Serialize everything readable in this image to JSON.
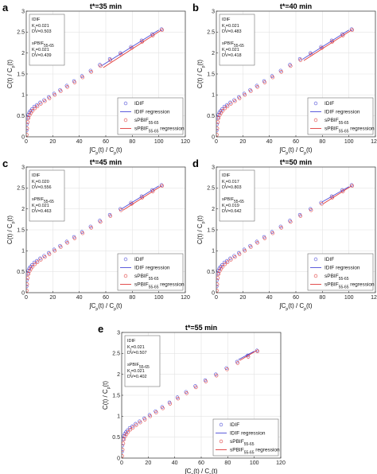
{
  "palette": {
    "idif": "#4b4bd8",
    "sp": "#e03c3c",
    "grid": "#e3e3e3",
    "axis": "#333333"
  },
  "chart_data": [
    {
      "panel": "a",
      "type": "scatter",
      "title": "t*=35 min",
      "xlabel": "∫Cp(t) / Cp(t)",
      "ylabel": "C(t) / Cp(t)",
      "xlim": [
        0,
        120
      ],
      "ylim": [
        0,
        3
      ],
      "xticks": [
        0,
        20,
        40,
        60,
        80,
        100,
        120
      ],
      "yticks": [
        0,
        0.5,
        1,
        1.5,
        2,
        2.5,
        3
      ],
      "grid": true,
      "legend_position": "bottom-right",
      "annotation": [
        "IDIF",
        "Ki=0.021",
        "DV=0.503",
        "sPBIF55-65",
        "Ki=0.021",
        "DV=0.439"
      ],
      "series": [
        {
          "name": "IDIF",
          "kind": "points",
          "x": [
            0.2,
            0.5,
            1,
            1.6,
            2.3,
            3.2,
            4.3,
            6,
            8,
            10.5,
            13.5,
            17,
            21,
            25.5,
            30.5,
            36,
            42,
            48.5,
            55.5,
            63,
            71,
            79,
            87,
            95,
            102
          ],
          "y": [
            0.15,
            0.3,
            0.45,
            0.53,
            0.58,
            0.62,
            0.66,
            0.72,
            0.76,
            0.82,
            0.88,
            0.95,
            1.03,
            1.12,
            1.22,
            1.33,
            1.45,
            1.58,
            1.72,
            1.86,
            2.0,
            2.15,
            2.3,
            2.45,
            2.57
          ]
        },
        {
          "name": "IDIF regression",
          "kind": "line",
          "x": [
            57,
            100
          ],
          "y": [
            1.7,
            2.55
          ]
        },
        {
          "name": "sPBIF55-65",
          "kind": "points",
          "x": [
            0.3,
            0.7,
            1.2,
            1.8,
            2.6,
            3.6,
            4.8,
            6.5,
            8.5,
            11,
            14,
            17.5,
            21.5,
            26,
            31,
            36.5,
            42.5,
            49,
            56,
            63.5,
            71.5,
            79.5,
            87.5,
            95.5,
            102.5
          ],
          "y": [
            0.05,
            0.2,
            0.35,
            0.45,
            0.52,
            0.57,
            0.62,
            0.68,
            0.73,
            0.79,
            0.85,
            0.92,
            1.0,
            1.09,
            1.19,
            1.3,
            1.42,
            1.55,
            1.69,
            1.83,
            1.97,
            2.12,
            2.27,
            2.42,
            2.55
          ]
        },
        {
          "name": "sPBIF55-65 regression",
          "kind": "line",
          "x": [
            58,
            102
          ],
          "y": [
            1.65,
            2.55
          ]
        }
      ]
    },
    {
      "panel": "b",
      "type": "scatter",
      "title": "t*=40 min",
      "xlabel": "∫Cp(t) / Cp(t)",
      "ylabel": "C(t) / Cp(t)",
      "xlim": [
        0,
        120
      ],
      "ylim": [
        0,
        3
      ],
      "xticks": [
        0,
        20,
        40,
        60,
        80,
        100,
        120
      ],
      "yticks": [
        0,
        0.5,
        1,
        1.5,
        2,
        2.5,
        3
      ],
      "grid": true,
      "legend_position": "bottom-right",
      "annotation": [
        "IDIF",
        "Ki=0.021",
        "DV=0.483",
        "sPBIF55-65",
        "Ki=0.021",
        "DV=0.418"
      ],
      "series": [
        {
          "name": "IDIF",
          "kind": "points",
          "x": [
            0.2,
            0.5,
            1,
            1.6,
            2.3,
            3.2,
            4.3,
            6,
            8,
            10.5,
            13.5,
            17,
            21,
            25.5,
            30.5,
            36,
            42,
            48.5,
            55.5,
            63,
            71,
            79,
            87,
            95,
            102
          ],
          "y": [
            0.15,
            0.3,
            0.45,
            0.53,
            0.58,
            0.62,
            0.66,
            0.72,
            0.76,
            0.82,
            0.88,
            0.95,
            1.03,
            1.12,
            1.22,
            1.33,
            1.45,
            1.58,
            1.72,
            1.86,
            2.0,
            2.15,
            2.3,
            2.45,
            2.57
          ]
        },
        {
          "name": "IDIF regression",
          "kind": "line",
          "x": [
            65,
            100
          ],
          "y": [
            1.85,
            2.55
          ]
        },
        {
          "name": "sPBIF55-65",
          "kind": "points",
          "x": [
            0.3,
            0.7,
            1.2,
            1.8,
            2.6,
            3.6,
            4.8,
            6.5,
            8.5,
            11,
            14,
            17.5,
            21.5,
            26,
            31,
            36.5,
            42.5,
            49,
            56,
            63.5,
            71.5,
            79.5,
            87.5,
            95.5,
            102.5
          ],
          "y": [
            0.05,
            0.2,
            0.35,
            0.45,
            0.52,
            0.57,
            0.62,
            0.68,
            0.73,
            0.79,
            0.85,
            0.92,
            1.0,
            1.09,
            1.19,
            1.3,
            1.42,
            1.55,
            1.69,
            1.83,
            1.97,
            2.12,
            2.27,
            2.42,
            2.55
          ]
        },
        {
          "name": "sPBIF55-65 regression",
          "kind": "line",
          "x": [
            66,
            102
          ],
          "y": [
            1.82,
            2.55
          ]
        }
      ]
    },
    {
      "panel": "c",
      "type": "scatter",
      "title": "t*=45 min",
      "xlabel": "∫Cp(t) / Cp(t)",
      "ylabel": "C(t) / Cp(t)",
      "xlim": [
        0,
        120
      ],
      "ylim": [
        0,
        3
      ],
      "xticks": [
        0,
        20,
        40,
        60,
        80,
        100,
        120
      ],
      "yticks": [
        0,
        0.5,
        1,
        1.5,
        2,
        2.5,
        3
      ],
      "grid": true,
      "legend_position": "bottom-right",
      "annotation": [
        "IDIF",
        "Ki=0.020",
        "DV=0.556",
        "sPBIF55-65",
        "Ki=0.021",
        "DV=0.463"
      ],
      "series": [
        {
          "name": "IDIF",
          "kind": "points",
          "x": [
            0.2,
            0.5,
            1,
            1.6,
            2.3,
            3.2,
            4.3,
            6,
            8,
            10.5,
            13.5,
            17,
            21,
            25.5,
            30.5,
            36,
            42,
            48.5,
            55.5,
            63,
            71,
            79,
            87,
            95,
            102
          ],
          "y": [
            0.15,
            0.3,
            0.45,
            0.53,
            0.58,
            0.62,
            0.66,
            0.72,
            0.76,
            0.82,
            0.88,
            0.95,
            1.03,
            1.12,
            1.22,
            1.33,
            1.45,
            1.58,
            1.72,
            1.86,
            2.0,
            2.15,
            2.3,
            2.45,
            2.57
          ]
        },
        {
          "name": "IDIF regression",
          "kind": "line",
          "x": [
            72,
            100
          ],
          "y": [
            2.0,
            2.55
          ]
        },
        {
          "name": "sPBIF55-65",
          "kind": "points",
          "x": [
            0.3,
            0.7,
            1.2,
            1.8,
            2.6,
            3.6,
            4.8,
            6.5,
            8.5,
            11,
            14,
            17.5,
            21.5,
            26,
            31,
            36.5,
            42.5,
            49,
            56,
            63.5,
            71.5,
            79.5,
            87.5,
            95.5,
            102.5
          ],
          "y": [
            0.05,
            0.2,
            0.35,
            0.45,
            0.52,
            0.57,
            0.62,
            0.68,
            0.73,
            0.79,
            0.85,
            0.92,
            1.0,
            1.09,
            1.19,
            1.3,
            1.42,
            1.55,
            1.69,
            1.83,
            1.97,
            2.12,
            2.27,
            2.42,
            2.55
          ]
        },
        {
          "name": "sPBIF55-65 regression",
          "kind": "line",
          "x": [
            73,
            102
          ],
          "y": [
            1.97,
            2.55
          ]
        }
      ]
    },
    {
      "panel": "d",
      "type": "scatter",
      "title": "t*=50 min",
      "xlabel": "∫Cp(t) / Cp(t)",
      "ylabel": "C(t) / Cp(t)",
      "xlim": [
        0,
        120
      ],
      "ylim": [
        0,
        3
      ],
      "xticks": [
        0,
        20,
        40,
        60,
        80,
        100,
        120
      ],
      "yticks": [
        0,
        0.5,
        1,
        1.5,
        2,
        2.5,
        3
      ],
      "grid": true,
      "legend_position": "bottom-right",
      "annotation": [
        "IDIF",
        "Ki=0.017",
        "DV=0.803",
        "sPBIF55-65",
        "Ki=0.019",
        "DV=0.642"
      ],
      "series": [
        {
          "name": "IDIF",
          "kind": "points",
          "x": [
            0.2,
            0.5,
            1,
            1.6,
            2.3,
            3.2,
            4.3,
            6,
            8,
            10.5,
            13.5,
            17,
            21,
            25.5,
            30.5,
            36,
            42,
            48.5,
            55.5,
            63,
            71,
            79,
            87,
            95,
            102
          ],
          "y": [
            0.15,
            0.3,
            0.45,
            0.53,
            0.58,
            0.62,
            0.66,
            0.72,
            0.76,
            0.82,
            0.88,
            0.95,
            1.03,
            1.12,
            1.22,
            1.33,
            1.45,
            1.58,
            1.72,
            1.86,
            2.0,
            2.15,
            2.3,
            2.45,
            2.57
          ]
        },
        {
          "name": "IDIF regression",
          "kind": "line",
          "x": [
            80,
            100
          ],
          "y": [
            2.17,
            2.53
          ]
        },
        {
          "name": "sPBIF55-65",
          "kind": "points",
          "x": [
            0.3,
            0.7,
            1.2,
            1.8,
            2.6,
            3.6,
            4.8,
            6.5,
            8.5,
            11,
            14,
            17.5,
            21.5,
            26,
            31,
            36.5,
            42.5,
            49,
            56,
            63.5,
            71.5,
            79.5,
            87.5,
            95.5,
            102.5
          ],
          "y": [
            0.05,
            0.2,
            0.35,
            0.45,
            0.52,
            0.57,
            0.62,
            0.68,
            0.73,
            0.79,
            0.85,
            0.92,
            1.0,
            1.09,
            1.19,
            1.3,
            1.42,
            1.55,
            1.69,
            1.83,
            1.97,
            2.12,
            2.27,
            2.42,
            2.55
          ]
        },
        {
          "name": "sPBIF55-65 regression",
          "kind": "line",
          "x": [
            81,
            102
          ],
          "y": [
            2.13,
            2.55
          ]
        }
      ]
    },
    {
      "panel": "e",
      "type": "scatter",
      "title": "t*=55 min",
      "xlabel": "∫Cp(t) / Cp(t)",
      "ylabel": "C(t) / Cp(t)",
      "xlim": [
        0,
        120
      ],
      "ylim": [
        0,
        3
      ],
      "xticks": [
        0,
        20,
        40,
        60,
        80,
        100,
        120
      ],
      "yticks": [
        0,
        0.5,
        1,
        1.5,
        2,
        2.5,
        3
      ],
      "grid": true,
      "legend_position": "bottom-right",
      "annotation": [
        "IDIF",
        "Ki=0.021",
        "DV=0.507",
        "sPBIF55-65",
        "Ki=0.021",
        "DV=0.402"
      ],
      "series": [
        {
          "name": "IDIF",
          "kind": "points",
          "x": [
            0.2,
            0.5,
            1,
            1.6,
            2.3,
            3.2,
            4.3,
            6,
            8,
            10.5,
            13.5,
            17,
            21,
            25.5,
            30.5,
            36,
            42,
            48.5,
            55.5,
            63,
            71,
            79,
            87,
            95,
            102
          ],
          "y": [
            0.15,
            0.3,
            0.45,
            0.53,
            0.58,
            0.62,
            0.66,
            0.72,
            0.76,
            0.82,
            0.88,
            0.95,
            1.03,
            1.12,
            1.22,
            1.33,
            1.45,
            1.58,
            1.72,
            1.86,
            2.0,
            2.15,
            2.3,
            2.45,
            2.57
          ]
        },
        {
          "name": "IDIF regression",
          "kind": "line",
          "x": [
            88,
            100
          ],
          "y": [
            2.35,
            2.55
          ]
        },
        {
          "name": "sPBIF55-65",
          "kind": "points",
          "x": [
            0.3,
            0.7,
            1.2,
            1.8,
            2.6,
            3.6,
            4.8,
            6.5,
            8.5,
            11,
            14,
            17.5,
            21.5,
            26,
            31,
            36.5,
            42.5,
            49,
            56,
            63.5,
            71.5,
            79.5,
            87.5,
            95.5,
            102.5
          ],
          "y": [
            0.05,
            0.2,
            0.35,
            0.45,
            0.52,
            0.57,
            0.62,
            0.68,
            0.73,
            0.79,
            0.85,
            0.92,
            1.0,
            1.09,
            1.19,
            1.3,
            1.42,
            1.55,
            1.69,
            1.83,
            1.97,
            2.12,
            2.27,
            2.42,
            2.55
          ]
        },
        {
          "name": "sPBIF55-65 regression",
          "kind": "line",
          "x": [
            89,
            102
          ],
          "y": [
            2.33,
            2.57
          ]
        }
      ]
    }
  ]
}
